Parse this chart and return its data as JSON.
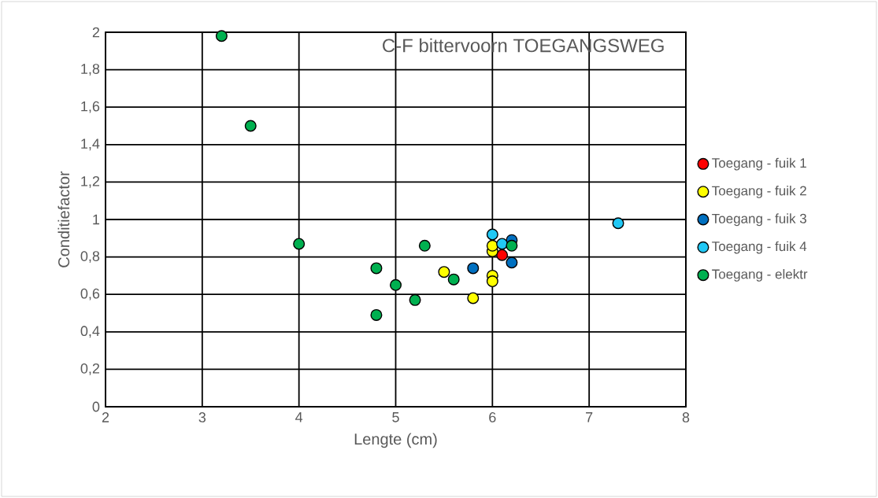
{
  "chart_data": {
    "type": "scatter",
    "title": "C-F bittervoorn TOEGANGSWEG",
    "xlabel": "Lengte (cm)",
    "ylabel": "Conditiefactor",
    "xlim": [
      2,
      8
    ],
    "xticks": [
      2,
      3,
      4,
      5,
      6,
      7,
      8
    ],
    "ylim": [
      0,
      2
    ],
    "yticks": [
      0,
      {
        "value": 0.2,
        "label": "0,2"
      },
      {
        "value": 0.4,
        "label": "0,4"
      },
      {
        "value": 0.6,
        "label": "0,6"
      },
      {
        "value": 0.8,
        "label": "0,8"
      },
      1,
      {
        "value": 1.2,
        "label": "1,2"
      },
      {
        "value": 1.4,
        "label": "1,4"
      },
      {
        "value": 1.6,
        "label": "1,6"
      },
      {
        "value": 1.8,
        "label": "1,8"
      },
      2
    ],
    "grid": true,
    "legend": "right",
    "marker": "circle",
    "series": [
      {
        "name": "Toegang - fuik 1",
        "color": "#ff0000",
        "x": [
          6.1
        ],
        "values": [
          0.81
        ]
      },
      {
        "name": "Toegang - fuik 2",
        "color": "#ffff00",
        "x": [
          5.5,
          5.8,
          6.0,
          6.0,
          6.0,
          6.0
        ],
        "values": [
          0.72,
          0.58,
          0.7,
          0.67,
          0.83,
          0.86
        ]
      },
      {
        "name": "Toegang - fuik 3",
        "color": "#0070c0",
        "x": [
          5.8,
          6.2,
          6.2
        ],
        "values": [
          0.74,
          0.89,
          0.77
        ]
      },
      {
        "name": "Toegang - fuik 4",
        "color": "#21c8f5",
        "x": [
          6.0,
          6.1,
          7.3
        ],
        "values": [
          0.92,
          0.87,
          0.98
        ]
      },
      {
        "name": "Toegang - elektr",
        "color": "#00b050",
        "x": [
          3.2,
          3.5,
          4.0,
          4.8,
          4.8,
          5.0,
          5.2,
          5.3,
          5.6,
          6.2
        ],
        "values": [
          1.98,
          1.5,
          0.87,
          0.74,
          0.49,
          0.65,
          0.57,
          0.86,
          0.68,
          0.86
        ]
      }
    ]
  }
}
